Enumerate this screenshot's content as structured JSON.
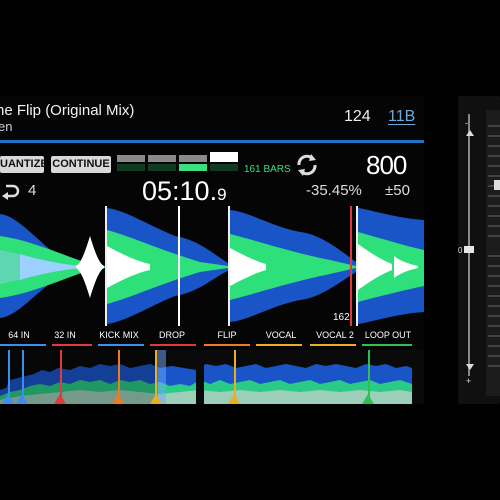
{
  "track": {
    "title": "he Flip (Original Mix)",
    "artist": "en",
    "bpm": "124",
    "key": "11B"
  },
  "buttons": {
    "quantize": "UANTIZE",
    "continue": "CONTINUE"
  },
  "bars_label": "161 BARS",
  "tempo_display": "800",
  "loop_count": "4",
  "time": {
    "main": "05:10.",
    "fraction": "9"
  },
  "pitch_percent": "-35.45%",
  "pitch_range": "±50",
  "bar_marker": "162",
  "cue_points": [
    {
      "label": "64 IN",
      "color": "#3a8ff0"
    },
    {
      "label": "32 IN",
      "color": "#e23a3a"
    },
    {
      "label": "KICK MIX",
      "color": "#3a8ff0"
    },
    {
      "label": "DROP",
      "color": "#e23a3a"
    },
    {
      "label": "FLIP",
      "color": "#f07a20"
    },
    {
      "label": "VOCAL",
      "color": "#e8b020"
    },
    {
      "label": "VOCAL 2",
      "color": "#e8b020"
    },
    {
      "label": "LOOP OUT",
      "color": "#2ec050"
    }
  ],
  "colors": {
    "accent_blue": "#1e73c9",
    "bars_green": "#39e07d",
    "wave_blue": "#1a55c8",
    "wave_green": "#2ee07a",
    "wave_white": "#ffffff"
  }
}
